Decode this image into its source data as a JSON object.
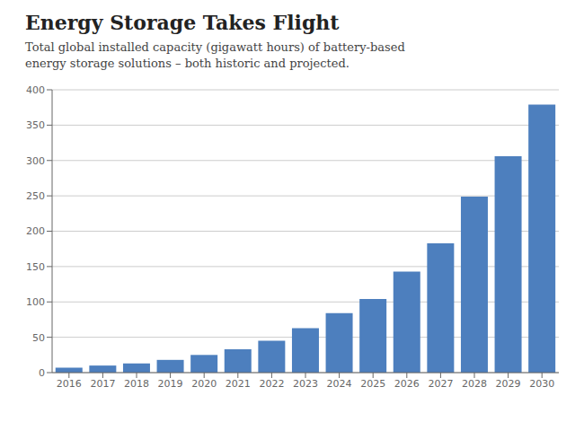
{
  "chart_data": {
    "type": "bar",
    "title": "Energy Storage Takes Flight",
    "subtitle": "Total global installed capacity (gigawatt hours) of battery-based\nenergy storage solutions – both historic and projected.",
    "categories": [
      "2016",
      "2017",
      "2018",
      "2019",
      "2020",
      "2021",
      "2022",
      "2023",
      "2024",
      "2025",
      "2026",
      "2027",
      "2028",
      "2029",
      "2030"
    ],
    "values": [
      7,
      10,
      13,
      18,
      25,
      33,
      45,
      63,
      84,
      104,
      143,
      183,
      249,
      306,
      379
    ],
    "color": "#4d7fbe",
    "ylim": [
      0,
      400
    ],
    "yticks": [
      0,
      50,
      100,
      150,
      200,
      250,
      300,
      350,
      400
    ],
    "grid": true
  }
}
